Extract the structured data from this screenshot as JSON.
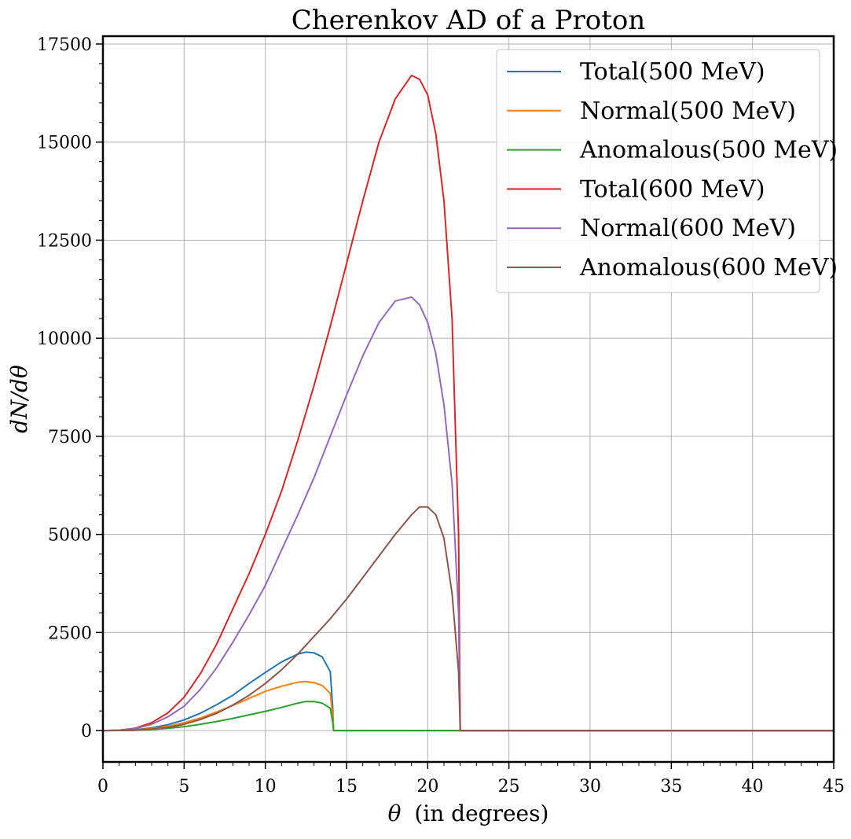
{
  "chart_data": {
    "type": "line",
    "title": "Cherenkov AD of a Proton",
    "xlabel_symbol": "θ",
    "xlabel_text": "(in degrees)",
    "ylabel": "dN/dθ",
    "xlim": [
      0,
      45
    ],
    "ylim": [
      -800,
      17700
    ],
    "xticks": [
      0,
      5,
      10,
      15,
      20,
      25,
      30,
      35,
      40,
      45
    ],
    "yticks": [
      0,
      2500,
      5000,
      7500,
      10000,
      12500,
      15000,
      17500
    ],
    "grid": true,
    "legend_position": "top-right",
    "series": [
      {
        "name": "Total(500 MeV)",
        "color": "#1f77b4",
        "x": [
          0,
          1,
          2,
          3,
          4,
          5,
          6,
          7,
          8,
          9,
          10,
          11,
          12,
          12.5,
          13,
          13.5,
          14,
          14.15,
          14.2,
          45
        ],
        "y": [
          0,
          3,
          20,
          70,
          150,
          270,
          440,
          660,
          900,
          1200,
          1480,
          1750,
          1950,
          2000,
          1980,
          1880,
          1500,
          600,
          0,
          0
        ]
      },
      {
        "name": "Normal(500 MeV)",
        "color": "#ff7f0e",
        "x": [
          0,
          1,
          2,
          3,
          4,
          5,
          6,
          7,
          8,
          9,
          10,
          11,
          12,
          12.5,
          13,
          13.5,
          14,
          14.15,
          14.2,
          45
        ],
        "y": [
          0,
          2,
          15,
          50,
          110,
          200,
          320,
          470,
          640,
          820,
          1000,
          1130,
          1230,
          1250,
          1220,
          1150,
          950,
          400,
          0,
          0
        ]
      },
      {
        "name": "Anomalous(500 MeV)",
        "color": "#2ca02c",
        "x": [
          0,
          1,
          2,
          3,
          4,
          5,
          6,
          7,
          8,
          9,
          10,
          11,
          12,
          12.5,
          13,
          13.5,
          14,
          14.15,
          14.2,
          45
        ],
        "y": [
          0,
          1,
          7,
          25,
          55,
          100,
          160,
          230,
          310,
          400,
          490,
          590,
          700,
          740,
          740,
          700,
          570,
          220,
          0,
          0
        ]
      },
      {
        "name": "Total(600 MeV)",
        "color": "#d62728",
        "x": [
          0,
          1,
          2,
          3,
          4,
          5,
          6,
          7,
          8,
          9,
          10,
          11,
          12,
          13,
          14,
          15,
          16,
          17,
          18,
          19,
          19.5,
          20,
          20.5,
          21,
          21.5,
          21.9,
          22.0,
          45
        ],
        "y": [
          0,
          10,
          60,
          200,
          450,
          850,
          1450,
          2200,
          3100,
          4000,
          5000,
          6100,
          7400,
          8800,
          10300,
          11900,
          13500,
          15000,
          16100,
          16700,
          16600,
          16200,
          15200,
          13500,
          10500,
          5000,
          0,
          0
        ]
      },
      {
        "name": "Normal(600 MeV)",
        "color": "#9467bd",
        "x": [
          0,
          1,
          2,
          3,
          4,
          5,
          6,
          7,
          8,
          9,
          10,
          11,
          12,
          13,
          14,
          15,
          16,
          17,
          18,
          19,
          19.5,
          20,
          20.5,
          21,
          21.5,
          21.9,
          22.0,
          45
        ],
        "y": [
          0,
          8,
          50,
          160,
          350,
          620,
          1050,
          1600,
          2250,
          2950,
          3700,
          4600,
          5500,
          6450,
          7500,
          8550,
          9550,
          10400,
          10950,
          11050,
          10850,
          10400,
          9600,
          8300,
          6300,
          3000,
          0,
          0
        ]
      },
      {
        "name": "Anomalous(600 MeV)",
        "color": "#8c564b",
        "x": [
          0,
          1,
          2,
          3,
          4,
          5,
          6,
          7,
          8,
          9,
          10,
          11,
          12,
          13,
          14,
          15,
          16,
          17,
          18,
          19,
          19.5,
          20,
          20.5,
          21,
          21.5,
          21.9,
          22.0,
          45
        ],
        "y": [
          0,
          2,
          10,
          35,
          80,
          160,
          280,
          440,
          650,
          900,
          1200,
          1550,
          1950,
          2400,
          2850,
          3350,
          3900,
          4450,
          5000,
          5500,
          5700,
          5700,
          5500,
          4900,
          3500,
          1500,
          0,
          0
        ]
      }
    ]
  }
}
